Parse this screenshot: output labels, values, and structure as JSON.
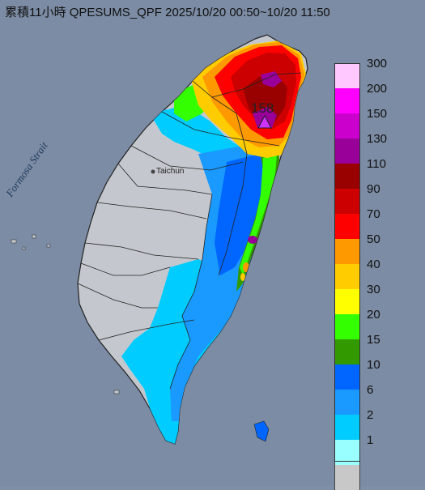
{
  "title": "累積11小時 QPESUMS_QPF 2025/10/20 00:50~10/20 11:50",
  "labels": {
    "strait": "Formosa Strait",
    "city": "Taichun",
    "max_value": "158"
  },
  "legend": [
    {
      "label": "300",
      "color": "#ffc8ff"
    },
    {
      "label": "200",
      "color": "#ff00ff"
    },
    {
      "label": "150",
      "color": "#cc00cc"
    },
    {
      "label": "130",
      "color": "#990099"
    },
    {
      "label": "110",
      "color": "#990000"
    },
    {
      "label": "90",
      "color": "#cc0000"
    },
    {
      "label": "70",
      "color": "#ff0000"
    },
    {
      "label": "50",
      "color": "#ff9900"
    },
    {
      "label": "40",
      "color": "#ffcc00"
    },
    {
      "label": "30",
      "color": "#ffff00"
    },
    {
      "label": "20",
      "color": "#33ff00"
    },
    {
      "label": "15",
      "color": "#339900"
    },
    {
      "label": "10",
      "color": "#0066ff"
    },
    {
      "label": "6",
      "color": "#1a99ff"
    },
    {
      "label": "2",
      "color": "#00ccff"
    },
    {
      "label": "1",
      "color": "#99ffff"
    },
    {
      "label": "",
      "color": "#c8c8c8"
    }
  ],
  "colors": {
    "sea": "#8090a8",
    "land": "#c6cad0"
  }
}
